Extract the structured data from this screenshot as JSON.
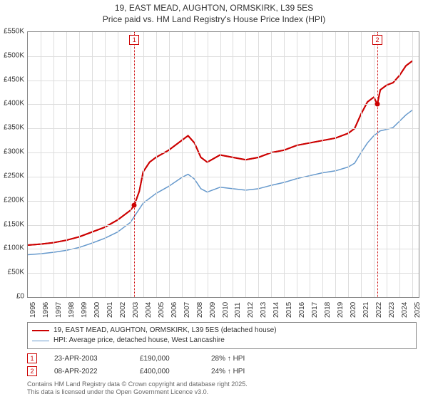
{
  "title": {
    "line1": "19, EAST MEAD, AUGHTON, ORMSKIRK, L39 5ES",
    "line2": "Price paid vs. HM Land Registry's House Price Index (HPI)",
    "fontsize": 12,
    "color": "#333333"
  },
  "chart": {
    "type": "line",
    "plot_bg": "#ffffff",
    "border_color": "#888888",
    "grid_color": "#dddddd",
    "x": {
      "min": 1995,
      "max": 2025.5,
      "ticks": [
        1995,
        1996,
        1997,
        1998,
        1999,
        2000,
        2001,
        2002,
        2003,
        2004,
        2005,
        2006,
        2007,
        2008,
        2009,
        2010,
        2011,
        2012,
        2013,
        2014,
        2015,
        2016,
        2017,
        2018,
        2019,
        2020,
        2021,
        2022,
        2023,
        2024,
        2025
      ],
      "tick_fontsize": 10
    },
    "y": {
      "min": 0,
      "max": 550000,
      "ticks": [
        0,
        50000,
        100000,
        150000,
        200000,
        250000,
        300000,
        350000,
        400000,
        450000,
        500000,
        550000
      ],
      "tick_labels": [
        "£0",
        "£50K",
        "£100K",
        "£150K",
        "£200K",
        "£250K",
        "£300K",
        "£350K",
        "£400K",
        "£450K",
        "£500K",
        "£550K"
      ],
      "tick_fontsize": 10
    },
    "series": [
      {
        "name": "19, EAST MEAD, AUGHTON, ORMSKIRK, L39 5ES (detached house)",
        "color": "#cc0000",
        "line_width": 2,
        "points": [
          [
            1995,
            108000
          ],
          [
            1996,
            110000
          ],
          [
            1997,
            113000
          ],
          [
            1998,
            118000
          ],
          [
            1999,
            125000
          ],
          [
            2000,
            135000
          ],
          [
            2001,
            145000
          ],
          [
            2002,
            160000
          ],
          [
            2003,
            180000
          ],
          [
            2003.3,
            190000
          ],
          [
            2003.7,
            220000
          ],
          [
            2004,
            260000
          ],
          [
            2004.5,
            280000
          ],
          [
            2005,
            290000
          ],
          [
            2006,
            305000
          ],
          [
            2007,
            325000
          ],
          [
            2007.5,
            335000
          ],
          [
            2008,
            320000
          ],
          [
            2008.5,
            290000
          ],
          [
            2009,
            280000
          ],
          [
            2010,
            295000
          ],
          [
            2011,
            290000
          ],
          [
            2012,
            285000
          ],
          [
            2013,
            290000
          ],
          [
            2014,
            300000
          ],
          [
            2015,
            305000
          ],
          [
            2016,
            315000
          ],
          [
            2017,
            320000
          ],
          [
            2018,
            325000
          ],
          [
            2019,
            330000
          ],
          [
            2020,
            340000
          ],
          [
            2020.5,
            350000
          ],
          [
            2021,
            380000
          ],
          [
            2021.5,
            405000
          ],
          [
            2022,
            415000
          ],
          [
            2022.27,
            400000
          ],
          [
            2022.5,
            430000
          ],
          [
            2023,
            440000
          ],
          [
            2023.5,
            445000
          ],
          [
            2024,
            460000
          ],
          [
            2024.5,
            480000
          ],
          [
            2025,
            490000
          ]
        ]
      },
      {
        "name": "HPI: Average price, detached house, West Lancashire",
        "color": "#6699cc",
        "line_width": 1.5,
        "points": [
          [
            1995,
            88000
          ],
          [
            1996,
            90000
          ],
          [
            1997,
            93000
          ],
          [
            1998,
            97000
          ],
          [
            1999,
            103000
          ],
          [
            2000,
            112000
          ],
          [
            2001,
            122000
          ],
          [
            2002,
            135000
          ],
          [
            2003,
            155000
          ],
          [
            2004,
            195000
          ],
          [
            2005,
            215000
          ],
          [
            2006,
            230000
          ],
          [
            2007,
            248000
          ],
          [
            2007.5,
            255000
          ],
          [
            2008,
            245000
          ],
          [
            2008.5,
            225000
          ],
          [
            2009,
            218000
          ],
          [
            2010,
            228000
          ],
          [
            2011,
            225000
          ],
          [
            2012,
            222000
          ],
          [
            2013,
            225000
          ],
          [
            2014,
            232000
          ],
          [
            2015,
            238000
          ],
          [
            2016,
            246000
          ],
          [
            2017,
            252000
          ],
          [
            2018,
            258000
          ],
          [
            2019,
            262000
          ],
          [
            2020,
            270000
          ],
          [
            2020.5,
            278000
          ],
          [
            2021,
            300000
          ],
          [
            2021.5,
            320000
          ],
          [
            2022,
            335000
          ],
          [
            2022.5,
            345000
          ],
          [
            2023,
            348000
          ],
          [
            2023.5,
            352000
          ],
          [
            2024,
            365000
          ],
          [
            2024.5,
            378000
          ],
          [
            2025,
            388000
          ]
        ]
      }
    ],
    "markers": [
      {
        "id": "1",
        "x": 2003.31,
        "y": 190000,
        "date": "23-APR-2003",
        "price": "£190,000",
        "pct": "28% ↑ HPI",
        "box_color": "#cc0000",
        "dot_color": "#cc0000",
        "vline_color": "#cc0000"
      },
      {
        "id": "2",
        "x": 2022.27,
        "y": 400000,
        "date": "08-APR-2022",
        "price": "£400,000",
        "pct": "24% ↑ HPI",
        "box_color": "#cc0000",
        "dot_color": "#cc0000",
        "vline_color": "#cc0000"
      }
    ]
  },
  "legend": {
    "border_color": "#888888",
    "fontsize": 10
  },
  "footer": {
    "line1": "Contains HM Land Registry data © Crown copyright and database right 2025.",
    "line2": "This data is licensed under the Open Government Licence v3.0.",
    "fontsize": 9,
    "color": "#666666"
  }
}
